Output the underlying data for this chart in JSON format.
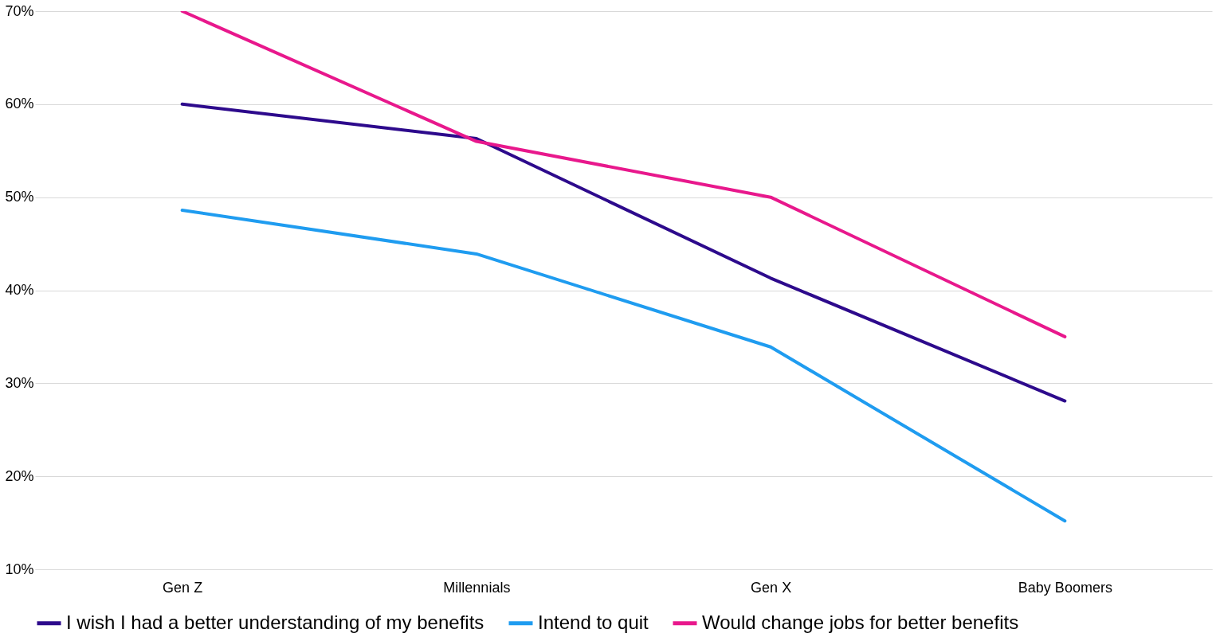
{
  "chart_data": {
    "type": "line",
    "categories": [
      "Gen Z",
      "Millennials",
      "Gen X",
      "Baby Boomers"
    ],
    "series": [
      {
        "name": "I wish I had a better understanding of my benefits",
        "color": "#2d0a8c",
        "values": [
          60,
          56.3,
          41.3,
          28.1
        ]
      },
      {
        "name": "Intend to quit",
        "color": "#1f9cf0",
        "values": [
          48.6,
          43.9,
          33.9,
          15.2
        ]
      },
      {
        "name": "Would change jobs for better benefits",
        "color": "#e8188c",
        "values": [
          70,
          56,
          50,
          35
        ]
      }
    ],
    "ylim": [
      10,
      70
    ],
    "yticks": [
      {
        "value": 10,
        "label": "10%"
      },
      {
        "value": 20,
        "label": "20%"
      },
      {
        "value": 30,
        "label": "30%"
      },
      {
        "value": 40,
        "label": "40%"
      },
      {
        "value": 50,
        "label": "50%"
      },
      {
        "value": 60,
        "label": "60%"
      },
      {
        "value": 70,
        "label": "70%"
      }
    ],
    "grid": "y",
    "legend": "bottom",
    "marker": "none",
    "line_style": "solid"
  }
}
